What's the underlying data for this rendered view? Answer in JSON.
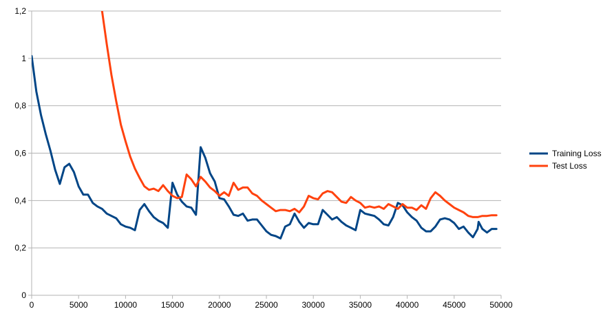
{
  "chart_data": {
    "type": "line",
    "title": "",
    "xlabel": "",
    "ylabel": "",
    "xlim": [
      0,
      50000
    ],
    "ylim": [
      0,
      1.2
    ],
    "x_ticks": [
      0,
      5000,
      10000,
      15000,
      20000,
      25000,
      30000,
      35000,
      40000,
      45000,
      50000
    ],
    "y_ticks": [
      0,
      0.2,
      0.4,
      0.6,
      0.8,
      1,
      1.2
    ],
    "y_tick_labels": [
      "0",
      "0,2",
      "0,4",
      "0,6",
      "0,8",
      "1",
      "1,2"
    ],
    "grid": "horizontal",
    "legend_position": "right",
    "series": [
      {
        "name": "Training Loss",
        "color": "#004586",
        "points": [
          [
            0,
            1.01
          ],
          [
            500,
            0.86
          ],
          [
            1000,
            0.76
          ],
          [
            1500,
            0.68
          ],
          [
            2000,
            0.61
          ],
          [
            2500,
            0.53
          ],
          [
            3000,
            0.47
          ],
          [
            3500,
            0.54
          ],
          [
            4000,
            0.555
          ],
          [
            4500,
            0.52
          ],
          [
            5000,
            0.46
          ],
          [
            5500,
            0.425
          ],
          [
            6000,
            0.425
          ],
          [
            6500,
            0.39
          ],
          [
            7000,
            0.375
          ],
          [
            7500,
            0.365
          ],
          [
            8000,
            0.345
          ],
          [
            8500,
            0.335
          ],
          [
            9000,
            0.325
          ],
          [
            9500,
            0.3
          ],
          [
            10000,
            0.29
          ],
          [
            10500,
            0.285
          ],
          [
            11000,
            0.275
          ],
          [
            11500,
            0.36
          ],
          [
            12000,
            0.385
          ],
          [
            12500,
            0.355
          ],
          [
            13000,
            0.33
          ],
          [
            13500,
            0.315
          ],
          [
            14000,
            0.305
          ],
          [
            14500,
            0.285
          ],
          [
            15000,
            0.475
          ],
          [
            15500,
            0.425
          ],
          [
            16000,
            0.395
          ],
          [
            16500,
            0.375
          ],
          [
            17000,
            0.37
          ],
          [
            17500,
            0.34
          ],
          [
            18000,
            0.625
          ],
          [
            18500,
            0.58
          ],
          [
            19000,
            0.515
          ],
          [
            19500,
            0.48
          ],
          [
            20000,
            0.41
          ],
          [
            20500,
            0.405
          ],
          [
            21000,
            0.375
          ],
          [
            21500,
            0.34
          ],
          [
            22000,
            0.335
          ],
          [
            22500,
            0.345
          ],
          [
            23000,
            0.315
          ],
          [
            23500,
            0.32
          ],
          [
            24000,
            0.32
          ],
          [
            24500,
            0.295
          ],
          [
            25000,
            0.27
          ],
          [
            25500,
            0.255
          ],
          [
            26000,
            0.25
          ],
          [
            26500,
            0.24
          ],
          [
            27000,
            0.29
          ],
          [
            27500,
            0.3
          ],
          [
            28000,
            0.345
          ],
          [
            28500,
            0.31
          ],
          [
            29000,
            0.285
          ],
          [
            29500,
            0.305
          ],
          [
            30000,
            0.3
          ],
          [
            30500,
            0.3
          ],
          [
            31000,
            0.36
          ],
          [
            31500,
            0.34
          ],
          [
            32000,
            0.32
          ],
          [
            32500,
            0.33
          ],
          [
            33000,
            0.31
          ],
          [
            33500,
            0.295
          ],
          [
            34000,
            0.285
          ],
          [
            34500,
            0.275
          ],
          [
            35000,
            0.36
          ],
          [
            35500,
            0.345
          ],
          [
            36000,
            0.34
          ],
          [
            36500,
            0.335
          ],
          [
            37000,
            0.32
          ],
          [
            37500,
            0.3
          ],
          [
            38000,
            0.295
          ],
          [
            38500,
            0.33
          ],
          [
            39000,
            0.39
          ],
          [
            39500,
            0.38
          ],
          [
            40000,
            0.35
          ],
          [
            40500,
            0.33
          ],
          [
            41000,
            0.315
          ],
          [
            41500,
            0.285
          ],
          [
            42000,
            0.27
          ],
          [
            42500,
            0.27
          ],
          [
            43000,
            0.29
          ],
          [
            43500,
            0.32
          ],
          [
            44000,
            0.325
          ],
          [
            44500,
            0.32
          ],
          [
            45000,
            0.305
          ],
          [
            45500,
            0.28
          ],
          [
            46000,
            0.29
          ],
          [
            46500,
            0.265
          ],
          [
            47000,
            0.245
          ],
          [
            47500,
            0.28
          ],
          [
            47600,
            0.31
          ],
          [
            48000,
            0.28
          ],
          [
            48500,
            0.265
          ],
          [
            49000,
            0.28
          ],
          [
            49500,
            0.28
          ]
        ]
      },
      {
        "name": "Test Loss",
        "color": "#ff420e",
        "points": [
          [
            7500,
            1.2
          ],
          [
            8000,
            1.06
          ],
          [
            8500,
            0.93
          ],
          [
            9000,
            0.82
          ],
          [
            9500,
            0.72
          ],
          [
            10000,
            0.65
          ],
          [
            10500,
            0.585
          ],
          [
            11000,
            0.535
          ],
          [
            11500,
            0.495
          ],
          [
            12000,
            0.46
          ],
          [
            12500,
            0.445
          ],
          [
            13000,
            0.45
          ],
          [
            13500,
            0.44
          ],
          [
            14000,
            0.465
          ],
          [
            14500,
            0.44
          ],
          [
            15000,
            0.42
          ],
          [
            15500,
            0.41
          ],
          [
            16000,
            0.415
          ],
          [
            16500,
            0.51
          ],
          [
            17000,
            0.49
          ],
          [
            17500,
            0.46
          ],
          [
            18000,
            0.5
          ],
          [
            18500,
            0.48
          ],
          [
            19000,
            0.455
          ],
          [
            19500,
            0.44
          ],
          [
            20000,
            0.42
          ],
          [
            20500,
            0.435
          ],
          [
            21000,
            0.42
          ],
          [
            21500,
            0.475
          ],
          [
            22000,
            0.445
          ],
          [
            22500,
            0.455
          ],
          [
            23000,
            0.455
          ],
          [
            23500,
            0.43
          ],
          [
            24000,
            0.42
          ],
          [
            24500,
            0.4
          ],
          [
            25000,
            0.385
          ],
          [
            25500,
            0.37
          ],
          [
            26000,
            0.355
          ],
          [
            26500,
            0.36
          ],
          [
            27000,
            0.36
          ],
          [
            27500,
            0.355
          ],
          [
            28000,
            0.365
          ],
          [
            28500,
            0.35
          ],
          [
            29000,
            0.375
          ],
          [
            29500,
            0.42
          ],
          [
            30000,
            0.41
          ],
          [
            30500,
            0.405
          ],
          [
            31000,
            0.43
          ],
          [
            31500,
            0.44
          ],
          [
            32000,
            0.435
          ],
          [
            32500,
            0.415
          ],
          [
            33000,
            0.395
          ],
          [
            33500,
            0.39
          ],
          [
            34000,
            0.415
          ],
          [
            34500,
            0.4
          ],
          [
            35000,
            0.39
          ],
          [
            35500,
            0.37
          ],
          [
            36000,
            0.375
          ],
          [
            36500,
            0.37
          ],
          [
            37000,
            0.375
          ],
          [
            37500,
            0.365
          ],
          [
            38000,
            0.385
          ],
          [
            38500,
            0.375
          ],
          [
            39000,
            0.365
          ],
          [
            39500,
            0.385
          ],
          [
            40000,
            0.37
          ],
          [
            40500,
            0.37
          ],
          [
            41000,
            0.36
          ],
          [
            41500,
            0.38
          ],
          [
            42000,
            0.365
          ],
          [
            42500,
            0.41
          ],
          [
            43000,
            0.435
          ],
          [
            43500,
            0.42
          ],
          [
            44000,
            0.4
          ],
          [
            44500,
            0.385
          ],
          [
            45000,
            0.37
          ],
          [
            45500,
            0.36
          ],
          [
            46000,
            0.35
          ],
          [
            46500,
            0.335
          ],
          [
            47000,
            0.33
          ],
          [
            47500,
            0.33
          ],
          [
            48000,
            0.335
          ],
          [
            48500,
            0.335
          ],
          [
            49000,
            0.338
          ],
          [
            49500,
            0.338
          ]
        ]
      }
    ]
  }
}
